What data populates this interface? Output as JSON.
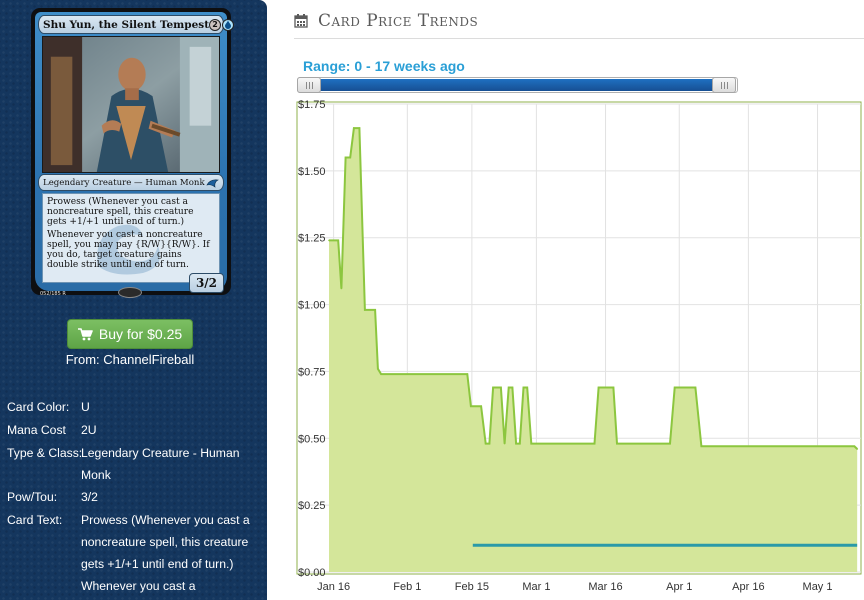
{
  "card": {
    "name": "Shu Yun, the Silent Tempest",
    "mana_symbols": [
      "2",
      "U"
    ],
    "type_line": "Legendary Creature — Human Monk",
    "rules_text": [
      "Prowess (Whenever you cast a noncreature spell, this creature gets +1/+1 until end of turn.)",
      "Whenever you cast a noncreature spell, you may pay {R/W}{R/W}. If you do, target creature gains double strike until end of turn."
    ],
    "power_toughness": "3/2",
    "collector_info": "052/185 R"
  },
  "buy": {
    "label": "Buy for $0.25",
    "from": "From: ChannelFireball"
  },
  "details": [
    {
      "label": "Card Color:",
      "value": "U"
    },
    {
      "label": "Mana Cost",
      "value": "2U"
    },
    {
      "label": "Type & Class:",
      "value": "Legendary Creature - Human Monk"
    },
    {
      "label": "Pow/Tou:",
      "value": "3/2"
    },
    {
      "label": "Card Text:",
      "value": "Prowess (Whenever you cast a noncreature spell, this creature gets +1/+1 until end of turn.) Whenever you cast a"
    }
  ],
  "header": {
    "title": "Card Price Trends",
    "icon": "calendar-icon"
  },
  "range": {
    "label": "Range: 0 - 17 weeks ago",
    "start_fraction": 0,
    "end_fraction": 1
  },
  "colors": {
    "panel_bg": "#14365e",
    "buy_green": "#6cb153",
    "range_blue": "#2a9fd6",
    "area_fill": "#d4e69a",
    "area_line": "#8cc63f",
    "buy_line": "#2a9aa8",
    "slider_blue": "#1f62ad"
  },
  "chart_data": {
    "type": "area",
    "y_ticks": [
      "$0.00",
      "$0.25",
      "$0.50",
      "$0.75",
      "$1.00",
      "$1.25",
      "$1.50",
      "$1.75"
    ],
    "ylim": [
      0,
      1.75
    ],
    "x_ticks": [
      {
        "label": "Jan 16",
        "day": 0
      },
      {
        "label": "Feb 1",
        "day": 16
      },
      {
        "label": "Feb 15",
        "day": 30
      },
      {
        "label": "Mar 1",
        "day": 44
      },
      {
        "label": "Mar 16",
        "day": 59
      },
      {
        "label": "Apr 1",
        "day": 75
      },
      {
        "label": "Apr 16",
        "day": 90
      },
      {
        "label": "May 1",
        "day": 105
      }
    ],
    "xlim": [
      -1,
      114
    ],
    "grid": true,
    "series": [
      {
        "key": "price",
        "points": [
          [
            -1,
            1.24
          ],
          [
            1,
            1.24
          ],
          [
            1.7,
            1.06
          ],
          [
            2.6,
            1.55
          ],
          [
            3.6,
            1.55
          ],
          [
            4.4,
            1.66
          ],
          [
            5.6,
            1.66
          ],
          [
            6.8,
            0.98
          ],
          [
            9,
            0.98
          ],
          [
            9.6,
            0.76
          ],
          [
            10.3,
            0.74
          ],
          [
            29,
            0.74
          ],
          [
            29.8,
            0.62
          ],
          [
            32,
            0.62
          ],
          [
            33,
            0.48
          ],
          [
            33.8,
            0.48
          ],
          [
            34.6,
            0.69
          ],
          [
            36.3,
            0.69
          ],
          [
            37.1,
            0.48
          ],
          [
            38,
            0.69
          ],
          [
            38.8,
            0.69
          ],
          [
            39.6,
            0.48
          ],
          [
            40.4,
            0.48
          ],
          [
            41.2,
            0.69
          ],
          [
            42,
            0.69
          ],
          [
            42.9,
            0.48
          ],
          [
            56.6,
            0.48
          ],
          [
            57.5,
            0.69
          ],
          [
            60.7,
            0.69
          ],
          [
            61.5,
            0.48
          ],
          [
            73,
            0.48
          ],
          [
            74,
            0.69
          ],
          [
            78.5,
            0.69
          ],
          [
            79.8,
            0.47
          ],
          [
            113,
            0.47
          ],
          [
            113.6,
            0.46
          ]
        ]
      },
      {
        "key": "buy_price",
        "points": [
          [
            30.2,
            0.1
          ],
          [
            113.6,
            0.1
          ]
        ]
      }
    ]
  }
}
